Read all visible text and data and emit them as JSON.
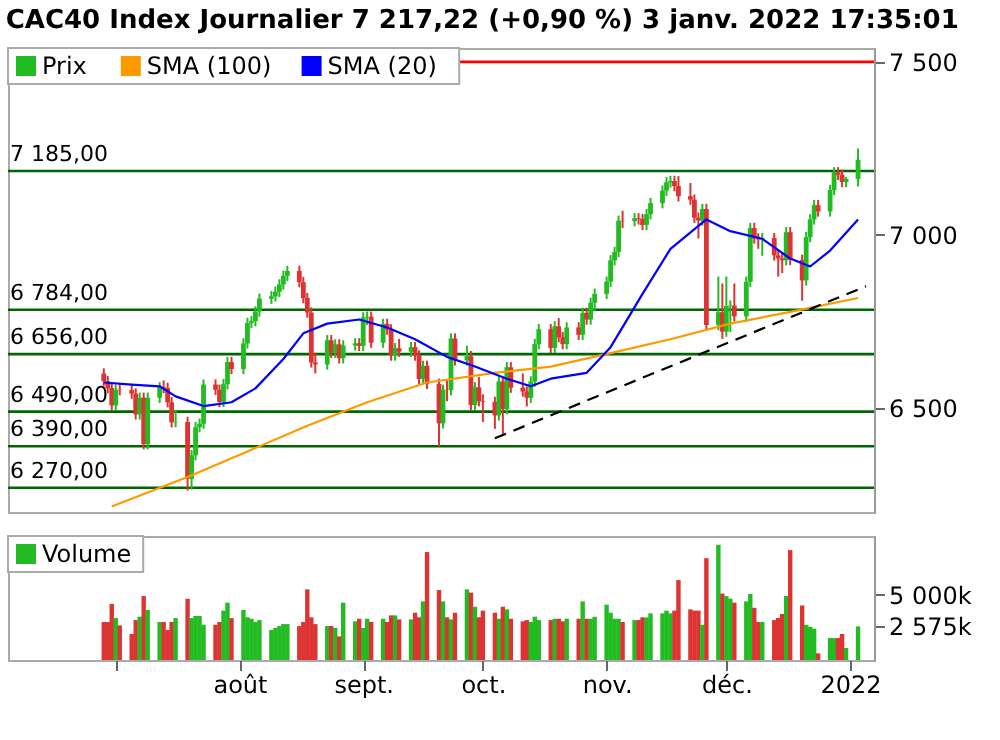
{
  "chart_data": [
    {
      "type": "candlestick",
      "title": "CAC40 Index Journalier 7 217,22 (+0,90 %) 3 janv. 2022 17:35:01",
      "x": [
        "2021-06-28",
        "2021-06-29",
        "2021-06-30",
        "2021-07-01",
        "2021-07-02",
        "2021-07-05",
        "2021-07-06",
        "2021-07-07",
        "2021-07-08",
        "2021-07-09",
        "2021-07-12",
        "2021-07-13",
        "2021-07-14",
        "2021-07-15",
        "2021-07-16",
        "2021-07-19",
        "2021-07-20",
        "2021-07-21",
        "2021-07-22",
        "2021-07-23",
        "2021-07-26",
        "2021-07-27",
        "2021-07-28",
        "2021-07-29",
        "2021-07-30",
        "2021-08-02",
        "2021-08-03",
        "2021-08-04",
        "2021-08-05",
        "2021-08-06",
        "2021-08-09",
        "2021-08-10",
        "2021-08-11",
        "2021-08-12",
        "2021-08-13",
        "2021-08-16",
        "2021-08-17",
        "2021-08-18",
        "2021-08-19",
        "2021-08-20",
        "2021-08-23",
        "2021-08-24",
        "2021-08-25",
        "2021-08-26",
        "2021-08-27",
        "2021-08-30",
        "2021-08-31",
        "2021-09-01",
        "2021-09-02",
        "2021-09-03",
        "2021-09-06",
        "2021-09-07",
        "2021-09-08",
        "2021-09-09",
        "2021-09-10",
        "2021-09-13",
        "2021-09-14",
        "2021-09-15",
        "2021-09-16",
        "2021-09-17",
        "2021-09-20",
        "2021-09-21",
        "2021-09-22",
        "2021-09-23",
        "2021-09-24",
        "2021-09-27",
        "2021-09-28",
        "2021-09-29",
        "2021-09-30",
        "2021-10-01",
        "2021-10-04",
        "2021-10-05",
        "2021-10-06",
        "2021-10-07",
        "2021-10-08",
        "2021-10-11",
        "2021-10-12",
        "2021-10-13",
        "2021-10-14",
        "2021-10-15",
        "2021-10-18",
        "2021-10-19",
        "2021-10-20",
        "2021-10-21",
        "2021-10-22",
        "2021-10-25",
        "2021-10-26",
        "2021-10-27",
        "2021-10-28",
        "2021-10-29",
        "2021-11-01",
        "2021-11-02",
        "2021-11-03",
        "2021-11-04",
        "2021-11-05",
        "2021-11-08",
        "2021-11-09",
        "2021-11-10",
        "2021-11-11",
        "2021-11-12",
        "2021-11-15",
        "2021-11-16",
        "2021-11-17",
        "2021-11-18",
        "2021-11-19",
        "2021-11-22",
        "2021-11-23",
        "2021-11-24",
        "2021-11-25",
        "2021-11-26",
        "2021-11-29",
        "2021-11-30",
        "2021-12-01",
        "2021-12-02",
        "2021-12-03",
        "2021-12-06",
        "2021-12-07",
        "2021-12-08",
        "2021-12-09",
        "2021-12-10",
        "2021-12-13",
        "2021-12-14",
        "2021-12-15",
        "2021-12-16",
        "2021-12-17",
        "2021-12-20",
        "2021-12-21",
        "2021-12-22",
        "2021-12-23",
        "2021-12-24",
        "2021-12-27",
        "2021-12-28",
        "2021-12-29",
        "2021-12-30",
        "2021-12-31",
        "2022-01-03"
      ],
      "xlim": [
        "2021-06-04",
        "2022-01-07"
      ],
      "ylim": [
        6200,
        7540
      ],
      "yticks": [
        {
          "value": 6500,
          "label": "6 500"
        },
        {
          "value": 7000,
          "label": "7 000"
        },
        {
          "value": 7500,
          "label": "7 500"
        }
      ],
      "tick_labels": "y",
      "legend": "top left",
      "series": [
        {
          "name": "Prix",
          "type": "candlestick",
          "color": "#22bb22",
          "ohlc": [
            [
              6600,
              6615,
              6563,
              6578
            ],
            [
              6578,
              6593,
              6543,
              6558
            ],
            [
              6558,
              6573,
              6493,
              6508
            ],
            [
              6508,
              6568,
              6493,
              6553
            ],
            [
              6553,
              6570,
              6537,
              6552
            ],
            [
              6552,
              6567,
              6527,
              6542
            ],
            [
              6542,
              6557,
              6467,
              6482
            ],
            [
              6482,
              6545,
              6467,
              6530
            ],
            [
              6530,
              6545,
              6381,
              6396
            ],
            [
              6396,
              6545,
              6381,
              6530
            ],
            [
              6530,
              6575,
              6515,
              6560
            ],
            [
              6560,
              6580,
              6543,
              6558
            ],
            [
              6558,
              6573,
              6502,
              6517
            ],
            [
              6517,
              6532,
              6444,
              6459
            ],
            [
              6459,
              6495,
              6445,
              6460
            ],
            [
              6460,
              6475,
              6262,
              6296
            ],
            [
              6296,
              6379,
              6265,
              6364
            ],
            [
              6364,
              6460,
              6349,
              6445
            ],
            [
              6445,
              6470,
              6430,
              6455
            ],
            [
              6455,
              6583,
              6440,
              6568
            ],
            [
              6568,
              6583,
              6538,
              6553
            ],
            [
              6553,
              6568,
              6503,
              6518
            ],
            [
              6518,
              6584,
              6503,
              6569
            ],
            [
              6569,
              6648,
              6554,
              6633
            ],
            [
              6633,
              6648,
              6598,
              6613
            ],
            [
              6613,
              6702,
              6598,
              6687
            ],
            [
              6687,
              6761,
              6672,
              6746
            ],
            [
              6746,
              6766,
              6731,
              6751
            ],
            [
              6751,
              6794,
              6736,
              6779
            ],
            [
              6779,
              6831,
              6764,
              6816
            ],
            [
              6816,
              6838,
              6801,
              6823
            ],
            [
              6823,
              6851,
              6808,
              6836
            ],
            [
              6836,
              6872,
              6821,
              6857
            ],
            [
              6857,
              6897,
              6842,
              6882
            ],
            [
              6882,
              6911,
              6867,
              6896
            ],
            [
              6896,
              6911,
              6849,
              6864
            ],
            [
              6864,
              6879,
              6803,
              6818
            ],
            [
              6818,
              6833,
              6761,
              6776
            ],
            [
              6776,
              6791,
              6617,
              6632
            ],
            [
              6632,
              6660,
              6600,
              6626
            ],
            [
              6626,
              6711,
              6611,
              6696
            ],
            [
              6696,
              6711,
              6645,
              6660
            ],
            [
              6660,
              6699,
              6645,
              6684
            ],
            [
              6684,
              6699,
              6629,
              6644
            ],
            [
              6644,
              6696,
              6629,
              6681
            ],
            [
              6681,
              6702,
              6666,
              6687
            ],
            [
              6687,
              6702,
              6665,
              6680
            ],
            [
              6680,
              6777,
              6665,
              6762
            ],
            [
              6762,
              6779,
              6740,
              6764
            ],
            [
              6764,
              6779,
              6674,
              6689
            ],
            [
              6689,
              6758,
              6674,
              6743
            ],
            [
              6743,
              6758,
              6712,
              6727
            ],
            [
              6727,
              6742,
              6637,
              6652
            ],
            [
              6652,
              6688,
              6637,
              6673
            ],
            [
              6673,
              6700,
              6648,
              6663
            ],
            [
              6663,
              6691,
              6648,
              6676
            ],
            [
              6676,
              6691,
              6637,
              6652
            ],
            [
              6652,
              6667,
              6569,
              6584
            ],
            [
              6584,
              6637,
              6569,
              6622
            ],
            [
              6622,
              6637,
              6555,
              6570
            ],
            [
              6570,
              6585,
              6390,
              6456
            ],
            [
              6456,
              6568,
              6441,
              6553
            ],
            [
              6553,
              6580,
              6520,
              6552
            ],
            [
              6552,
              6716,
              6537,
              6701
            ],
            [
              6701,
              6716,
              6623,
              6638
            ],
            [
              6638,
              6680,
              6623,
              6650
            ],
            [
              6650,
              6665,
              6494,
              6509
            ],
            [
              6509,
              6575,
              6494,
              6560
            ],
            [
              6560,
              6590,
              6505,
              6520
            ],
            [
              6520,
              6540,
              6460,
              6518
            ],
            [
              6518,
              6533,
              6440,
              6479
            ],
            [
              6479,
              6592,
              6464,
              6577
            ],
            [
              6577,
              6592,
              6420,
              6497
            ],
            [
              6497,
              6633,
              6482,
              6618
            ],
            [
              6618,
              6633,
              6544,
              6559
            ],
            [
              6559,
              6600,
              6533,
              6548
            ],
            [
              6548,
              6563,
              6505,
              6530
            ],
            [
              6530,
              6592,
              6515,
              6577
            ],
            [
              6577,
              6700,
              6562,
              6685
            ],
            [
              6685,
              6743,
              6670,
              6728
            ],
            [
              6728,
              6743,
              6659,
              6674
            ],
            [
              6674,
              6751,
              6659,
              6736
            ],
            [
              6736,
              6760,
              6690,
              6705
            ],
            [
              6705,
              6720,
              6670,
              6685
            ],
            [
              6685,
              6748,
              6670,
              6733
            ],
            [
              6733,
              6748,
              6697,
              6712
            ],
            [
              6712,
              6790,
              6697,
              6775
            ],
            [
              6775,
              6790,
              6741,
              6756
            ],
            [
              6756,
              6819,
              6741,
              6804
            ],
            [
              6804,
              6845,
              6780,
              6830
            ],
            [
              6830,
              6880,
              6815,
              6865
            ],
            [
              6865,
              6942,
              6850,
              6927
            ],
            [
              6927,
              6966,
              6912,
              6951
            ],
            [
              6951,
              7056,
              6936,
              7041
            ],
            [
              7041,
              7070,
              7020,
              7040
            ],
            [
              7040,
              7063,
              7025,
              7048
            ],
            [
              7048,
              7063,
              7030,
              7046
            ],
            [
              7046,
              7061,
              7014,
              7029
            ],
            [
              7029,
              7075,
              7014,
              7060
            ],
            [
              7060,
              7107,
              7045,
              7092
            ],
            [
              7092,
              7143,
              7077,
              7128
            ],
            [
              7128,
              7167,
              7113,
              7152
            ],
            [
              7152,
              7171,
              7137,
              7156
            ],
            [
              7156,
              7171,
              7126,
              7141
            ],
            [
              7141,
              7170,
              7097,
              7112
            ],
            [
              7112,
              7150,
              7087,
              7102
            ],
            [
              7102,
              7117,
              7035,
              7050
            ],
            [
              7050,
              7065,
              6990,
              7042
            ],
            [
              7042,
              7090,
              7027,
              7075
            ],
            [
              7075,
              7090,
              6725,
              6740
            ],
            [
              6740,
              6880,
              6725,
              6777
            ],
            [
              6777,
              6860,
              6700,
              6721
            ],
            [
              6721,
              6880,
              6706,
              6795
            ],
            [
              6795,
              6811,
              6720,
              6796
            ],
            [
              6796,
              6860,
              6750,
              6765
            ],
            [
              6765,
              6880,
              6750,
              6865
            ],
            [
              6865,
              7035,
              6850,
              7020
            ],
            [
              7020,
              7035,
              6975,
              6990
            ],
            [
              6990,
              7005,
              6960,
              6987
            ],
            [
              6987,
              7006,
              6940,
              6991
            ],
            [
              6991,
              7006,
              6926,
              6941
            ],
            [
              6941,
              6956,
              6880,
              6932
            ],
            [
              6932,
              6950,
              6890,
              6927
            ],
            [
              6927,
              7023,
              6912,
              7008
            ],
            [
              7008,
              7023,
              6913,
              6928
            ],
            [
              6928,
              6943,
              6810,
              6869
            ],
            [
              6869,
              7009,
              6854,
              6994
            ],
            [
              6994,
              7060,
              6979,
              7045
            ],
            [
              7045,
              7101,
              7030,
              7086
            ],
            [
              7086,
              7101,
              7053,
              7068
            ],
            [
              7068,
              7145,
              7053,
              7130
            ],
            [
              7130,
              7196,
              7115,
              7181
            ],
            [
              7181,
              7196,
              7159,
              7174
            ],
            [
              7174,
              7189,
              7138,
              7153
            ],
            [
              7153,
              7168,
              7138,
              7162
            ],
            [
              7162,
              7250,
              7140,
              7217
            ]
          ],
          "colors": [
            "#dd3333",
            "#dd3333",
            "#dd3333",
            "#22bb22",
            "#dd3333",
            "#dd3333",
            "#dd3333",
            "#22bb22",
            "#dd3333",
            "#22bb22",
            "#22bb22",
            "#dd3333",
            "#dd3333",
            "#dd3333",
            "#22bb22",
            "#dd3333",
            "#22bb22",
            "#22bb22",
            "#22bb22",
            "#22bb22",
            "#dd3333",
            "#dd3333",
            "#22bb22",
            "#22bb22",
            "#dd3333",
            "#22bb22",
            "#22bb22",
            "#22bb22",
            "#22bb22",
            "#22bb22",
            "#22bb22",
            "#22bb22",
            "#22bb22",
            "#22bb22",
            "#22bb22",
            "#dd3333",
            "#dd3333",
            "#dd3333",
            "#dd3333",
            "#dd3333",
            "#22bb22",
            "#dd3333",
            "#22bb22",
            "#dd3333",
            "#22bb22",
            "#22bb22",
            "#dd3333",
            "#22bb22",
            "#22bb22",
            "#dd3333",
            "#22bb22",
            "#dd3333",
            "#dd3333",
            "#22bb22",
            "#dd3333",
            "#22bb22",
            "#dd3333",
            "#dd3333",
            "#22bb22",
            "#dd3333",
            "#dd3333",
            "#22bb22",
            "#dd3333",
            "#22bb22",
            "#dd3333",
            "#22bb22",
            "#dd3333",
            "#22bb22",
            "#dd3333",
            "#dd3333",
            "#dd3333",
            "#22bb22",
            "#dd3333",
            "#22bb22",
            "#dd3333",
            "#dd3333",
            "#dd3333",
            "#22bb22",
            "#22bb22",
            "#22bb22",
            "#dd3333",
            "#22bb22",
            "#dd3333",
            "#dd3333",
            "#22bb22",
            "#dd3333",
            "#22bb22",
            "#dd3333",
            "#22bb22",
            "#22bb22",
            "#22bb22",
            "#22bb22",
            "#22bb22",
            "#22bb22",
            "#dd3333",
            "#22bb22",
            "#dd3333",
            "#dd3333",
            "#22bb22",
            "#22bb22",
            "#22bb22",
            "#22bb22",
            "#22bb22",
            "#dd3333",
            "#dd3333",
            "#dd3333",
            "#dd3333",
            "#dd3333",
            "#22bb22",
            "#dd3333",
            "#22bb22",
            "#dd3333",
            "#22bb22",
            "#22bb22",
            "#dd3333",
            "#22bb22",
            "#22bb22",
            "#dd3333",
            "#dd3333",
            "#22bb22",
            "#dd3333",
            "#dd3333",
            "#dd3333",
            "#22bb22",
            "#dd3333",
            "#dd3333",
            "#22bb22",
            "#22bb22",
            "#22bb22",
            "#dd3333",
            "#22bb22",
            "#22bb22",
            "#dd3333",
            "#dd3333",
            "#22bb22",
            "#22bb22"
          ]
        },
        {
          "name": "SMA (100)",
          "type": "line",
          "color": "#ff9900",
          "x": [
            "2021-06-30",
            "2021-07-19",
            "2021-08-03",
            "2021-08-18",
            "2021-09-02",
            "2021-09-17",
            "2021-10-04",
            "2021-10-18",
            "2021-11-02",
            "2021-11-17",
            "2021-12-02",
            "2021-12-17",
            "2022-01-03"
          ],
          "values": [
            6216,
            6301,
            6375,
            6449,
            6517,
            6574,
            6602,
            6620,
            6659,
            6699,
            6744,
            6778,
            6818
          ]
        },
        {
          "name": "SMA (20)",
          "type": "line",
          "color": "#0000ff",
          "x": [
            "2021-06-28",
            "2021-07-05",
            "2021-07-12",
            "2021-07-16",
            "2021-07-23",
            "2021-07-30",
            "2021-08-05",
            "2021-08-12",
            "2021-08-17",
            "2021-08-23",
            "2021-08-31",
            "2021-09-07",
            "2021-09-14",
            "2021-09-22",
            "2021-09-29",
            "2021-10-07",
            "2021-10-13",
            "2021-10-18",
            "2021-10-27",
            "2021-11-02",
            "2021-11-10",
            "2021-11-17",
            "2021-11-26",
            "2021-12-02",
            "2021-12-10",
            "2021-12-17",
            "2021-12-22",
            "2021-12-27",
            "2022-01-03"
          ],
          "values": [
            6574,
            6568,
            6563,
            6534,
            6506,
            6517,
            6557,
            6642,
            6716,
            6744,
            6756,
            6733,
            6699,
            6648,
            6620,
            6585,
            6563,
            6585,
            6602,
            6676,
            6830,
            6960,
            7045,
            7011,
            6989,
            6932,
            6909,
            6955,
            7045
          ]
        },
        {
          "type": "line",
          "color": "#000000",
          "line_style": "dashed",
          "x": [
            "2021-10-04",
            "2022-01-05"
          ],
          "values": [
            6413,
            6852
          ]
        }
      ],
      "ref_lines": [
        {
          "axis": "y",
          "value": 7500,
          "color": "#ff0000"
        },
        {
          "axis": "y",
          "value": 7185,
          "label": "7 185,00",
          "color": "#006600"
        },
        {
          "axis": "y",
          "value": 6784,
          "label": "6 784,00",
          "color": "#006600"
        },
        {
          "axis": "y",
          "value": 6656,
          "label": "6 656,00",
          "color": "#006600"
        },
        {
          "axis": "y",
          "value": 6490,
          "label": "6 490,00",
          "color": "#006600"
        },
        {
          "axis": "y",
          "value": 6390,
          "label": "6 390,00",
          "color": "#006600"
        },
        {
          "axis": "y",
          "value": 6270,
          "label": "6 270,00",
          "color": "#006600"
        }
      ]
    },
    {
      "type": "bar",
      "x": [
        "2021-06-28",
        "2021-06-29",
        "2021-06-30",
        "2021-07-01",
        "2021-07-02",
        "2021-07-05",
        "2021-07-06",
        "2021-07-07",
        "2021-07-08",
        "2021-07-09",
        "2021-07-12",
        "2021-07-13",
        "2021-07-14",
        "2021-07-15",
        "2021-07-16",
        "2021-07-19",
        "2021-07-20",
        "2021-07-21",
        "2021-07-22",
        "2021-07-23",
        "2021-07-26",
        "2021-07-27",
        "2021-07-28",
        "2021-07-29",
        "2021-07-30",
        "2021-08-02",
        "2021-08-03",
        "2021-08-04",
        "2021-08-05",
        "2021-08-06",
        "2021-08-09",
        "2021-08-10",
        "2021-08-11",
        "2021-08-12",
        "2021-08-13",
        "2021-08-16",
        "2021-08-17",
        "2021-08-18",
        "2021-08-19",
        "2021-08-20",
        "2021-08-23",
        "2021-08-24",
        "2021-08-25",
        "2021-08-26",
        "2021-08-27",
        "2021-08-30",
        "2021-08-31",
        "2021-09-01",
        "2021-09-02",
        "2021-09-03",
        "2021-09-06",
        "2021-09-07",
        "2021-09-08",
        "2021-09-09",
        "2021-09-10",
        "2021-09-13",
        "2021-09-14",
        "2021-09-15",
        "2021-09-16",
        "2021-09-17",
        "2021-09-20",
        "2021-09-21",
        "2021-09-22",
        "2021-09-23",
        "2021-09-24",
        "2021-09-27",
        "2021-09-28",
        "2021-09-29",
        "2021-09-30",
        "2021-10-01",
        "2021-10-04",
        "2021-10-05",
        "2021-10-06",
        "2021-10-07",
        "2021-10-08",
        "2021-10-11",
        "2021-10-12",
        "2021-10-13",
        "2021-10-14",
        "2021-10-15",
        "2021-10-18",
        "2021-10-19",
        "2021-10-20",
        "2021-10-21",
        "2021-10-22",
        "2021-10-25",
        "2021-10-26",
        "2021-10-27",
        "2021-10-28",
        "2021-10-29",
        "2021-11-01",
        "2021-11-02",
        "2021-11-03",
        "2021-11-04",
        "2021-11-05",
        "2021-11-08",
        "2021-11-09",
        "2021-11-10",
        "2021-11-11",
        "2021-11-12",
        "2021-11-15",
        "2021-11-16",
        "2021-11-17",
        "2021-11-18",
        "2021-11-19",
        "2021-11-22",
        "2021-11-23",
        "2021-11-24",
        "2021-11-25",
        "2021-11-26",
        "2021-11-29",
        "2021-11-30",
        "2021-12-01",
        "2021-12-02",
        "2021-12-03",
        "2021-12-06",
        "2021-12-07",
        "2021-12-08",
        "2021-12-09",
        "2021-12-10",
        "2021-12-13",
        "2021-12-14",
        "2021-12-15",
        "2021-12-16",
        "2021-12-17",
        "2021-12-20",
        "2021-12-21",
        "2021-12-22",
        "2021-12-23",
        "2021-12-24",
        "2021-12-27",
        "2021-12-28",
        "2021-12-29",
        "2021-12-30",
        "2021-12-31",
        "2022-01-03"
      ],
      "xlim": [
        "2021-06-04",
        "2022-01-07"
      ],
      "xticks": [
        {
          "value": "2021-07-01",
          "label": null
        },
        {
          "value": "2021-08-01",
          "label": "août"
        },
        {
          "value": "2021-09-01",
          "label": "sept."
        },
        {
          "value": "2021-10-01",
          "label": "oct."
        },
        {
          "value": "2021-11-01",
          "label": "nov."
        },
        {
          "value": "2021-12-01",
          "label": "déc."
        },
        {
          "value": "2022-01-01",
          "label": "2022"
        }
      ],
      "ylim": [
        0,
        9500
      ],
      "yticks": [
        {
          "value": 2575,
          "label": "2 575k"
        },
        {
          "value": 5000,
          "label": "5 000k"
        }
      ],
      "legend": "top left",
      "series": [
        {
          "name": "Volume",
          "color": "#22bb22",
          "values": [
            2910,
            2910,
            4290,
            3210,
            2650,
            1990,
            3060,
            3320,
            4900,
            3830,
            2910,
            2910,
            2300,
            2910,
            3210,
            4690,
            3210,
            3370,
            3370,
            2700,
            2700,
            2910,
            3780,
            4390,
            3210,
            3830,
            3270,
            3160,
            2910,
            3060,
            2300,
            2450,
            2600,
            2750,
            2750,
            2600,
            2910,
            5410,
            3270,
            2750,
            2600,
            2600,
            2450,
            1810,
            4390,
            2960,
            3160,
            2450,
            3160,
            2910,
            3160,
            2910,
            3420,
            3420,
            3110,
            3110,
            3620,
            3270,
            4490,
            8270,
            5360,
            4490,
            3270,
            3110,
            3620,
            5410,
            5160,
            4080,
            3270,
            3780,
            3620,
            3160,
            4080,
            3880,
            3160,
            2960,
            3060,
            2910,
            3320,
            3060,
            3060,
            3160,
            3160,
            2960,
            3160,
            3160,
            4490,
            3160,
            3160,
            3310,
            4240,
            3620,
            3160,
            3160,
            2910,
            3060,
            3060,
            3270,
            3260,
            3570,
            3570,
            3780,
            3570,
            3780,
            6120,
            3880,
            3780,
            3780,
            2700,
            7800,
            8830,
            5090,
            4900,
            4700,
            4390,
            4490,
            5060,
            4000,
            2910,
            2910,
            3060,
            3220,
            3530,
            4900,
            8420,
            4180,
            2700,
            2550,
            2400,
            510,
            1680,
            1680,
            1680,
            1990,
            920,
            2575
          ],
          "colors": [
            "#dd3333",
            "#dd3333",
            "#dd3333",
            "#22bb22",
            "#dd3333",
            "#dd3333",
            "#dd3333",
            "#22bb22",
            "#dd3333",
            "#22bb22",
            "#22bb22",
            "#dd3333",
            "#dd3333",
            "#dd3333",
            "#22bb22",
            "#dd3333",
            "#22bb22",
            "#22bb22",
            "#22bb22",
            "#22bb22",
            "#dd3333",
            "#dd3333",
            "#22bb22",
            "#22bb22",
            "#dd3333",
            "#22bb22",
            "#22bb22",
            "#22bb22",
            "#22bb22",
            "#22bb22",
            "#22bb22",
            "#22bb22",
            "#22bb22",
            "#22bb22",
            "#22bb22",
            "#dd3333",
            "#dd3333",
            "#dd3333",
            "#dd3333",
            "#dd3333",
            "#22bb22",
            "#dd3333",
            "#22bb22",
            "#dd3333",
            "#22bb22",
            "#22bb22",
            "#dd3333",
            "#22bb22",
            "#22bb22",
            "#dd3333",
            "#22bb22",
            "#dd3333",
            "#dd3333",
            "#22bb22",
            "#dd3333",
            "#22bb22",
            "#dd3333",
            "#dd3333",
            "#22bb22",
            "#dd3333",
            "#dd3333",
            "#22bb22",
            "#dd3333",
            "#22bb22",
            "#dd3333",
            "#22bb22",
            "#dd3333",
            "#22bb22",
            "#dd3333",
            "#dd3333",
            "#dd3333",
            "#22bb22",
            "#dd3333",
            "#22bb22",
            "#dd3333",
            "#dd3333",
            "#dd3333",
            "#22bb22",
            "#22bb22",
            "#22bb22",
            "#dd3333",
            "#22bb22",
            "#dd3333",
            "#dd3333",
            "#22bb22",
            "#dd3333",
            "#22bb22",
            "#dd3333",
            "#22bb22",
            "#22bb22",
            "#22bb22",
            "#22bb22",
            "#22bb22",
            "#22bb22",
            "#dd3333",
            "#22bb22",
            "#dd3333",
            "#dd3333",
            "#22bb22",
            "#22bb22",
            "#22bb22",
            "#22bb22",
            "#22bb22",
            "#dd3333",
            "#dd3333",
            "#dd3333",
            "#dd3333",
            "#dd3333",
            "#22bb22",
            "#dd3333",
            "#22bb22",
            "#dd3333",
            "#22bb22",
            "#22bb22",
            "#dd3333",
            "#22bb22",
            "#22bb22",
            "#dd3333",
            "#dd3333",
            "#22bb22",
            "#dd3333",
            "#dd3333",
            "#dd3333",
            "#22bb22",
            "#dd3333",
            "#dd3333",
            "#22bb22",
            "#22bb22",
            "#22bb22",
            "#dd3333",
            "#22bb22",
            "#22bb22",
            "#dd3333",
            "#dd3333",
            "#22bb22",
            "#22bb22"
          ]
        }
      ]
    }
  ]
}
